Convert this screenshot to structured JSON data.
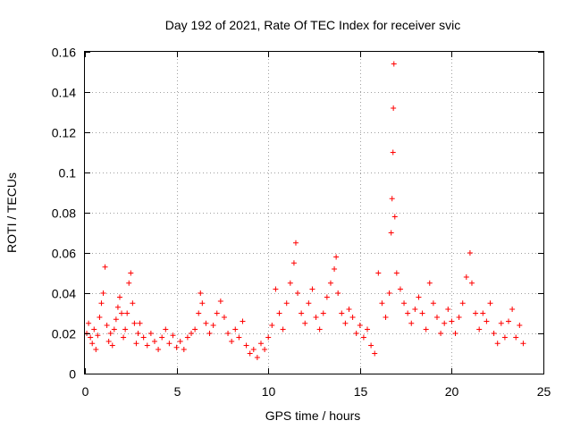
{
  "chart_data": {
    "type": "scatter",
    "title": "Day 192 of 2021, Rate Of TEC Index for receiver svic",
    "xlabel": "GPS time / hours",
    "ylabel": "ROTI / TECUs",
    "xlim": [
      0,
      25
    ],
    "ylim": [
      0,
      0.16
    ],
    "xticks": [
      0,
      5,
      10,
      15,
      20,
      25
    ],
    "yticks": [
      0,
      0.02,
      0.04,
      0.06,
      0.08,
      0.1,
      0.12,
      0.14,
      0.16
    ],
    "xtick_labels": [
      "0",
      "5",
      "10",
      "15",
      "20",
      "25"
    ],
    "ytick_labels": [
      "0",
      "0.02",
      "0.04",
      "0.06",
      "0.08",
      "0.1",
      "0.12",
      "0.14",
      "0.16"
    ],
    "grid": true,
    "marker": "+",
    "series": [
      {
        "name": "ROTI",
        "color": "#ff0000",
        "points": [
          [
            0.1,
            0.02
          ],
          [
            0.2,
            0.025
          ],
          [
            0.3,
            0.018
          ],
          [
            0.4,
            0.015
          ],
          [
            0.5,
            0.022
          ],
          [
            0.6,
            0.012
          ],
          [
            0.7,
            0.019
          ],
          [
            0.8,
            0.028
          ],
          [
            0.9,
            0.035
          ],
          [
            1.0,
            0.04
          ],
          [
            1.1,
            0.053
          ],
          [
            1.2,
            0.024
          ],
          [
            1.3,
            0.016
          ],
          [
            1.4,
            0.02
          ],
          [
            1.5,
            0.014
          ],
          [
            1.6,
            0.022
          ],
          [
            1.7,
            0.027
          ],
          [
            1.8,
            0.033
          ],
          [
            1.9,
            0.038
          ],
          [
            2.0,
            0.03
          ],
          [
            2.1,
            0.018
          ],
          [
            2.2,
            0.022
          ],
          [
            2.3,
            0.03
          ],
          [
            2.4,
            0.045
          ],
          [
            2.5,
            0.05
          ],
          [
            2.6,
            0.035
          ],
          [
            2.7,
            0.025
          ],
          [
            2.8,
            0.015
          ],
          [
            2.9,
            0.02
          ],
          [
            3.0,
            0.025
          ],
          [
            3.2,
            0.018
          ],
          [
            3.4,
            0.014
          ],
          [
            3.6,
            0.02
          ],
          [
            3.8,
            0.016
          ],
          [
            4.0,
            0.012
          ],
          [
            4.2,
            0.018
          ],
          [
            4.4,
            0.022
          ],
          [
            4.6,
            0.015
          ],
          [
            4.8,
            0.019
          ],
          [
            5.0,
            0.013
          ],
          [
            5.2,
            0.016
          ],
          [
            5.4,
            0.012
          ],
          [
            5.6,
            0.018
          ],
          [
            5.8,
            0.02
          ],
          [
            6.0,
            0.022
          ],
          [
            6.2,
            0.03
          ],
          [
            6.3,
            0.04
          ],
          [
            6.4,
            0.035
          ],
          [
            6.6,
            0.025
          ],
          [
            6.8,
            0.02
          ],
          [
            7.0,
            0.024
          ],
          [
            7.2,
            0.03
          ],
          [
            7.4,
            0.036
          ],
          [
            7.6,
            0.028
          ],
          [
            7.8,
            0.02
          ],
          [
            8.0,
            0.016
          ],
          [
            8.2,
            0.022
          ],
          [
            8.4,
            0.018
          ],
          [
            8.6,
            0.026
          ],
          [
            8.8,
            0.014
          ],
          [
            9.0,
            0.01
          ],
          [
            9.2,
            0.012
          ],
          [
            9.4,
            0.008
          ],
          [
            9.6,
            0.015
          ],
          [
            9.8,
            0.012
          ],
          [
            10.0,
            0.018
          ],
          [
            10.2,
            0.024
          ],
          [
            10.4,
            0.042
          ],
          [
            10.6,
            0.03
          ],
          [
            10.8,
            0.022
          ],
          [
            11.0,
            0.035
          ],
          [
            11.2,
            0.045
          ],
          [
            11.4,
            0.055
          ],
          [
            11.5,
            0.065
          ],
          [
            11.6,
            0.04
          ],
          [
            11.8,
            0.03
          ],
          [
            12.0,
            0.025
          ],
          [
            12.2,
            0.035
          ],
          [
            12.4,
            0.042
          ],
          [
            12.6,
            0.028
          ],
          [
            12.8,
            0.022
          ],
          [
            13.0,
            0.03
          ],
          [
            13.2,
            0.038
          ],
          [
            13.4,
            0.045
          ],
          [
            13.6,
            0.052
          ],
          [
            13.7,
            0.058
          ],
          [
            13.8,
            0.04
          ],
          [
            14.0,
            0.03
          ],
          [
            14.2,
            0.025
          ],
          [
            14.4,
            0.032
          ],
          [
            14.6,
            0.028
          ],
          [
            14.8,
            0.02
          ],
          [
            15.0,
            0.024
          ],
          [
            15.2,
            0.018
          ],
          [
            15.4,
            0.022
          ],
          [
            15.6,
            0.014
          ],
          [
            15.8,
            0.01
          ],
          [
            16.0,
            0.05
          ],
          [
            16.2,
            0.035
          ],
          [
            16.4,
            0.028
          ],
          [
            16.6,
            0.04
          ],
          [
            16.7,
            0.07
          ],
          [
            16.75,
            0.087
          ],
          [
            16.8,
            0.11
          ],
          [
            16.82,
            0.132
          ],
          [
            16.85,
            0.154
          ],
          [
            16.9,
            0.078
          ],
          [
            17.0,
            0.05
          ],
          [
            17.2,
            0.042
          ],
          [
            17.4,
            0.035
          ],
          [
            17.6,
            0.03
          ],
          [
            17.8,
            0.025
          ],
          [
            18.0,
            0.032
          ],
          [
            18.2,
            0.038
          ],
          [
            18.4,
            0.03
          ],
          [
            18.6,
            0.022
          ],
          [
            18.8,
            0.045
          ],
          [
            19.0,
            0.035
          ],
          [
            19.2,
            0.028
          ],
          [
            19.4,
            0.02
          ],
          [
            19.6,
            0.025
          ],
          [
            19.8,
            0.032
          ],
          [
            20.0,
            0.026
          ],
          [
            20.2,
            0.02
          ],
          [
            20.4,
            0.028
          ],
          [
            20.6,
            0.035
          ],
          [
            20.8,
            0.048
          ],
          [
            21.0,
            0.06
          ],
          [
            21.1,
            0.045
          ],
          [
            21.3,
            0.03
          ],
          [
            21.5,
            0.022
          ],
          [
            21.7,
            0.03
          ],
          [
            21.9,
            0.026
          ],
          [
            22.1,
            0.035
          ],
          [
            22.3,
            0.02
          ],
          [
            22.5,
            0.015
          ],
          [
            22.7,
            0.025
          ],
          [
            22.9,
            0.018
          ],
          [
            23.1,
            0.026
          ],
          [
            23.3,
            0.032
          ],
          [
            23.5,
            0.018
          ],
          [
            23.7,
            0.024
          ],
          [
            23.9,
            0.015
          ]
        ]
      }
    ]
  }
}
